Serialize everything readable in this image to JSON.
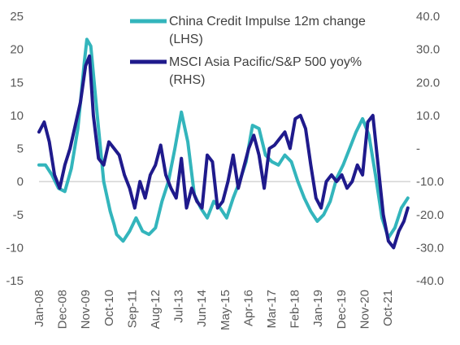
{
  "chart_data": {
    "type": "line",
    "title": "",
    "xlabel": "",
    "ylabel_left": "",
    "ylabel_right": "",
    "ylim_left": [
      -15,
      25
    ],
    "ylim_right": [
      -40,
      40
    ],
    "left_ticks": [
      "25",
      "20",
      "15",
      "10",
      "5",
      "0",
      "-5",
      "-10",
      "-15"
    ],
    "right_ticks": [
      "40.0",
      "30.0",
      "20.0",
      "10.0",
      "-",
      "-10.0",
      "-20.0",
      "-30.0",
      "-40.0"
    ],
    "x_ticks": [
      "Jan-08",
      "Dec-08",
      "Nov-09",
      "Oct-10",
      "Sep-11",
      "Aug-12",
      "Jul-13",
      "Jun-14",
      "May-15",
      "Apr-16",
      "Mar-17",
      "Feb-18",
      "Jan-19",
      "Dec-19",
      "Nov-20",
      "Oct-21"
    ],
    "grid": false,
    "legend_position": "top-right",
    "series": [
      {
        "name": "China Credit Impulse 12m change (LHS)",
        "axis": "left",
        "color": "#33B5BC",
        "x": [
          2008.0,
          2008.25,
          2008.5,
          2008.75,
          2009.0,
          2009.25,
          2009.5,
          2009.6,
          2009.75,
          2009.85,
          2010.0,
          2010.25,
          2010.5,
          2010.75,
          2010.9,
          2011.0,
          2011.25,
          2011.5,
          2011.75,
          2012.0,
          2012.25,
          2012.5,
          2012.75,
          2013.0,
          2013.25,
          2013.5,
          2013.75,
          2014.0,
          2014.25,
          2014.5,
          2014.75,
          2015.0,
          2015.25,
          2015.5,
          2015.75,
          2016.0,
          2016.25,
          2016.5,
          2016.75,
          2017.0,
          2017.25,
          2017.5,
          2017.75,
          2018.0,
          2018.25,
          2018.5,
          2018.75,
          2019.0,
          2019.25,
          2019.5,
          2019.75,
          2020.0,
          2020.25,
          2020.5,
          2020.75,
          2021.0,
          2021.25,
          2021.5,
          2021.75,
          2022.0,
          2022.25
        ],
        "values": [
          2.5,
          2.5,
          1.0,
          -1.0,
          -1.5,
          2.0,
          8.0,
          12.0,
          18.0,
          21.5,
          20.5,
          10.0,
          0.0,
          -4.5,
          -6.5,
          -8.0,
          -9.0,
          -7.5,
          -5.5,
          -7.5,
          -8.0,
          -7.0,
          -3.0,
          0.0,
          5.0,
          10.5,
          6.0,
          -2.0,
          -4.0,
          -5.5,
          -3.0,
          -4.0,
          -5.5,
          -2.5,
          0.0,
          3.0,
          8.5,
          8.0,
          4.0,
          3.0,
          2.5,
          4.0,
          3.0,
          0.0,
          -2.5,
          -4.5,
          -6.0,
          -5.0,
          -3.0,
          0.5,
          2.5,
          5.0,
          7.5,
          9.5,
          7.0,
          1.0,
          -5.5,
          -8.5,
          -7.0,
          -4.0,
          -2.5
        ]
      },
      {
        "name": "MSCI Asia Pacific/S&P 500 yoy% (RHS)",
        "axis": "right",
        "color": "#1F1A8C",
        "x": [
          2008.0,
          2008.2,
          2008.4,
          2008.6,
          2008.8,
          2009.0,
          2009.2,
          2009.4,
          2009.6,
          2009.8,
          2009.95,
          2010.1,
          2010.3,
          2010.5,
          2010.7,
          2010.9,
          2011.1,
          2011.3,
          2011.5,
          2011.7,
          2011.9,
          2012.1,
          2012.3,
          2012.5,
          2012.7,
          2012.9,
          2013.1,
          2013.3,
          2013.5,
          2013.7,
          2013.9,
          2014.1,
          2014.3,
          2014.5,
          2014.7,
          2014.9,
          2015.1,
          2015.3,
          2015.5,
          2015.7,
          2015.9,
          2016.1,
          2016.3,
          2016.5,
          2016.7,
          2016.9,
          2017.1,
          2017.3,
          2017.5,
          2017.7,
          2017.9,
          2018.1,
          2018.3,
          2018.5,
          2018.7,
          2018.9,
          2019.1,
          2019.3,
          2019.5,
          2019.7,
          2019.9,
          2020.1,
          2020.3,
          2020.5,
          2020.7,
          2020.9,
          2021.1,
          2021.3,
          2021.5,
          2021.7,
          2021.9,
          2022.1,
          2022.25
        ],
        "values": [
          5.0,
          8.0,
          2.0,
          -8.0,
          -12.0,
          -5.0,
          0.0,
          7.0,
          14.0,
          25.0,
          28.0,
          10.0,
          -3.0,
          -5.0,
          2.0,
          0.0,
          -2.0,
          -8.0,
          -12.0,
          -18.0,
          -10.0,
          -15.0,
          -8.0,
          -5.0,
          1.0,
          -8.0,
          -12.0,
          -15.0,
          -3.0,
          -18.0,
          -12.0,
          -16.0,
          -18.0,
          -2.0,
          -4.0,
          -18.0,
          -16.0,
          -10.0,
          -2.0,
          -12.0,
          -6.0,
          0.0,
          4.0,
          -2.0,
          -12.0,
          0.0,
          1.0,
          3.0,
          5.0,
          0.0,
          9.0,
          10.0,
          6.0,
          -5.0,
          -15.0,
          -18.0,
          -10.0,
          -8.0,
          -10.0,
          -8.0,
          -12.0,
          -10.0,
          -5.0,
          -8.0,
          8.0,
          10.0,
          -5.0,
          -20.0,
          -28.0,
          -30.0,
          -25.0,
          -22.0,
          -18.0
        ]
      }
    ]
  }
}
